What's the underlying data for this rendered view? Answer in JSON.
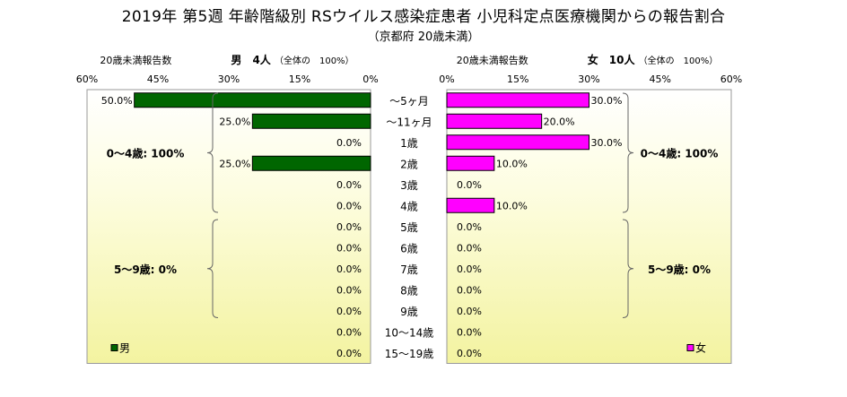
{
  "chart_data": {
    "type": "bar",
    "title": "2019年 第5週 年齢階級別 RSウイルス感染症患者 小児科定点医療機関からの報告割合",
    "subtitle": "（京都府 20歳未満）",
    "categories": [
      "～5ヶ月",
      "～11ヶ月",
      "1歳",
      "2歳",
      "3歳",
      "4歳",
      "5歳",
      "6歳",
      "7歳",
      "8歳",
      "9歳",
      "10～14歳",
      "15～19歳"
    ],
    "ticks": [
      "0%",
      "15%",
      "30%",
      "45%",
      "60%"
    ],
    "xlim": [
      0,
      60
    ],
    "grid": false,
    "panels": [
      {
        "side": "left",
        "heading": "20歳未満報告数",
        "sex_label": "男",
        "count_label": "4人",
        "total_label": "（全体の　100%）",
        "legend": "男",
        "color": "#006600",
        "values": [
          50.0,
          25.0,
          0.0,
          25.0,
          0.0,
          0.0,
          0.0,
          0.0,
          0.0,
          0.0,
          0.0,
          0.0,
          0.0
        ],
        "value_labels": [
          "50.0%",
          "25.0%",
          "0.0%",
          "25.0%",
          "0.0%",
          "0.0%",
          "0.0%",
          "0.0%",
          "0.0%",
          "0.0%",
          "0.0%",
          "0.0%",
          "0.0%"
        ],
        "groups": [
          {
            "label": "0～4歳: 100%",
            "from": 0,
            "to": 5
          },
          {
            "label": "5～9歳: 0%",
            "from": 6,
            "to": 10
          }
        ]
      },
      {
        "side": "right",
        "heading": "20歳未満報告数",
        "sex_label": "女",
        "count_label": "10人",
        "total_label": "（全体の　100%）",
        "legend": "女",
        "color": "#ff00ff",
        "values": [
          30.0,
          20.0,
          30.0,
          10.0,
          0.0,
          10.0,
          0.0,
          0.0,
          0.0,
          0.0,
          0.0,
          0.0,
          0.0
        ],
        "value_labels": [
          "30.0%",
          "20.0%",
          "30.0%",
          "10.0%",
          "0.0%",
          "10.0%",
          "0.0%",
          "0.0%",
          "0.0%",
          "0.0%",
          "0.0%",
          "0.0%",
          "0.0%"
        ],
        "groups": [
          {
            "label": "0～4歳: 100%",
            "from": 0,
            "to": 5
          },
          {
            "label": "5～9歳: 0%",
            "from": 6,
            "to": 10
          }
        ]
      }
    ]
  }
}
